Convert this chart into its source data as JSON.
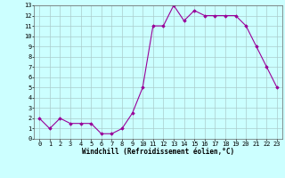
{
  "x": [
    0,
    1,
    2,
    3,
    4,
    5,
    6,
    7,
    8,
    9,
    10,
    11,
    12,
    13,
    14,
    15,
    16,
    17,
    18,
    19,
    20,
    21,
    22,
    23
  ],
  "y": [
    2,
    1,
    2,
    1.5,
    1.5,
    1.5,
    0.5,
    0.5,
    1,
    2.5,
    5,
    11,
    11,
    13,
    11.5,
    12.5,
    12,
    12,
    12,
    12,
    11,
    9,
    7,
    5
  ],
  "line_color": "#990099",
  "marker": "D",
  "markersize": 1.8,
  "linewidth": 0.8,
  "bg_color": "#ccffff",
  "grid_color": "#aacccc",
  "xlabel": "Windchill (Refroidissement éolien,°C)",
  "xlabel_fontsize": 5.5,
  "tick_fontsize": 5,
  "xlim": [
    -0.5,
    23.5
  ],
  "ylim": [
    0,
    13
  ],
  "yticks": [
    0,
    1,
    2,
    3,
    4,
    5,
    6,
    7,
    8,
    9,
    10,
    11,
    12,
    13
  ],
  "xticks": [
    0,
    1,
    2,
    3,
    4,
    5,
    6,
    7,
    8,
    9,
    10,
    11,
    12,
    13,
    14,
    15,
    16,
    17,
    18,
    19,
    20,
    21,
    22,
    23
  ],
  "spine_color": "#666666"
}
